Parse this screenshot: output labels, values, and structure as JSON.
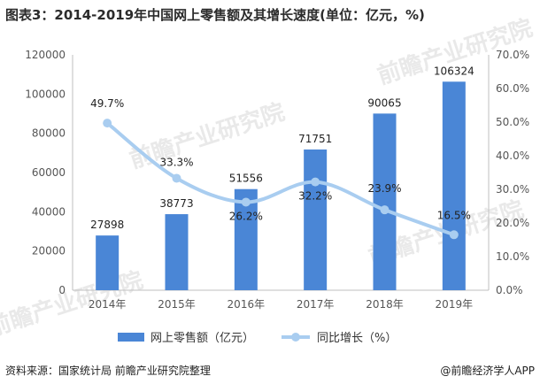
{
  "title": "图表3：2014-2019年中国网上零售额及其增长速度(单位：亿元，%)",
  "source": "资料来源：国家统计局 前瞻产业研究院整理",
  "credit": "@前瞻经济学人APP",
  "watermark": "前瞻产业研究院",
  "colors": {
    "bar": "#4a86d6",
    "line": "#a9cdf0",
    "axis": "#bfbfbf",
    "text": "#222222"
  },
  "chart_data": {
    "type": "bar",
    "categories": [
      "2014年",
      "2015年",
      "2016年",
      "2017年",
      "2018年",
      "2019年"
    ],
    "series": [
      {
        "name": "网上零售额（亿元）",
        "type": "bar",
        "axis": "left",
        "values": [
          27898,
          38773,
          51556,
          71751,
          90065,
          106324
        ],
        "labels": [
          "27898",
          "38773",
          "51556",
          "71751",
          "90065",
          "106324"
        ]
      },
      {
        "name": "同比增长（%）",
        "type": "line",
        "axis": "right",
        "values": [
          49.7,
          33.3,
          26.2,
          32.2,
          23.9,
          16.5
        ],
        "labels": [
          "49.7%",
          "33.3%",
          "26.2%",
          "32.2%",
          "23.9%",
          "16.5%"
        ]
      }
    ],
    "y_left": {
      "min": 0,
      "max": 120000,
      "ticks": [
        "0",
        "20000",
        "40000",
        "60000",
        "80000",
        "100000",
        "120000"
      ]
    },
    "y_right": {
      "min": 0,
      "max": 70,
      "ticks": [
        "0.0%",
        "10.0%",
        "20.0%",
        "30.0%",
        "40.0%",
        "50.0%",
        "60.0%",
        "70.0%"
      ]
    },
    "grid": false,
    "legend": "bottom"
  }
}
